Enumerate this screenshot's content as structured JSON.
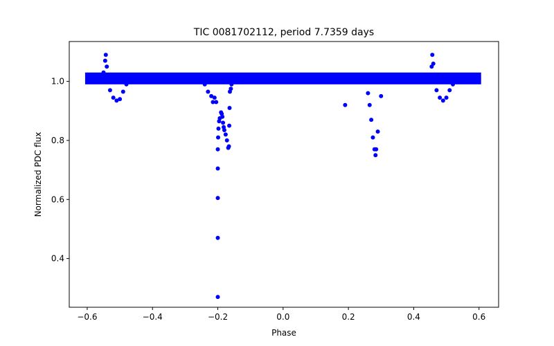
{
  "chart_data": {
    "type": "scatter",
    "title": "TIC 0081702112, period 7.7359 days",
    "xlabel": "Phase",
    "ylabel": "Normalized PDC flux",
    "xlim": [
      -0.655,
      0.66
    ],
    "ylim": [
      0.235,
      1.135
    ],
    "xticks": [
      -0.6,
      -0.4,
      -0.2,
      0.0,
      0.2,
      0.4,
      0.6
    ],
    "xtick_labels": [
      "−0.6",
      "−0.4",
      "−0.2",
      "0.0",
      "0.2",
      "0.4",
      "0.6"
    ],
    "yticks": [
      0.4,
      0.6,
      0.8,
      1.0
    ],
    "ytick_labels": [
      "0.4",
      "0.6",
      "0.8",
      "1.0"
    ],
    "marker_color": "#0000ff",
    "grid": false,
    "series": [
      {
        "name": "PDC flux",
        "x": [
          -0.6,
          -0.58,
          -0.56,
          -0.55,
          -0.545,
          -0.543,
          -0.54,
          -0.535,
          -0.53,
          -0.52,
          -0.51,
          -0.5,
          -0.49,
          -0.48,
          -0.46,
          -0.44,
          -0.42,
          -0.4,
          -0.38,
          -0.36,
          -0.34,
          -0.32,
          -0.3,
          -0.28,
          -0.26,
          -0.24,
          -0.23,
          -0.22,
          -0.215,
          -0.21,
          -0.205,
          -0.2,
          -0.2,
          -0.2,
          -0.2,
          -0.2,
          -0.199,
          -0.198,
          -0.196,
          -0.194,
          -0.19,
          -0.188,
          -0.186,
          -0.184,
          -0.182,
          -0.18,
          -0.176,
          -0.172,
          -0.168,
          -0.166,
          -0.165,
          -0.164,
          -0.163,
          -0.16,
          -0.158,
          -0.155,
          -0.15,
          -0.14,
          -0.13,
          -0.12,
          -0.1,
          -0.08,
          -0.06,
          -0.04,
          -0.02,
          0.0,
          0.02,
          0.04,
          0.06,
          0.08,
          0.1,
          0.12,
          0.14,
          0.16,
          0.18,
          0.19,
          0.2,
          0.22,
          0.24,
          0.25,
          0.26,
          0.265,
          0.27,
          0.275,
          0.28,
          0.283,
          0.285,
          0.29,
          0.3,
          0.31,
          0.32,
          0.34,
          0.36,
          0.38,
          0.4,
          0.42,
          0.44,
          0.45,
          0.455,
          0.457,
          0.46,
          0.465,
          0.47,
          0.48,
          0.49,
          0.5,
          0.51,
          0.52,
          0.54,
          0.56,
          0.58,
          0.6
        ],
        "y": [
          1.01,
          1.01,
          1.01,
          1.03,
          1.07,
          1.09,
          1.05,
          1.0,
          0.97,
          0.945,
          0.935,
          0.94,
          0.965,
          0.99,
          1.01,
          1.01,
          1.01,
          1.01,
          1.01,
          1.01,
          1.01,
          1.01,
          1.015,
          1.015,
          1.01,
          0.99,
          0.965,
          0.95,
          0.93,
          0.945,
          0.93,
          0.27,
          0.47,
          0.605,
          0.705,
          0.77,
          0.81,
          0.84,
          0.865,
          0.875,
          0.895,
          0.89,
          0.88,
          0.86,
          0.845,
          0.835,
          0.82,
          0.8,
          0.775,
          0.78,
          0.85,
          0.91,
          0.965,
          0.975,
          0.99,
          1.0,
          1.01,
          1.01,
          1.01,
          1.01,
          1.01,
          1.01,
          1.01,
          1.01,
          1.01,
          1.01,
          1.01,
          1.01,
          1.01,
          1.01,
          1.01,
          1.01,
          1.01,
          1.01,
          1.01,
          0.92,
          1.01,
          1.01,
          1.01,
          1.0,
          0.96,
          0.92,
          0.87,
          0.81,
          0.77,
          0.75,
          0.77,
          0.83,
          0.95,
          1.0,
          1.01,
          1.01,
          1.01,
          1.01,
          1.01,
          1.01,
          1.01,
          1.02,
          1.05,
          1.09,
          1.06,
          1.0,
          0.97,
          0.945,
          0.935,
          0.945,
          0.97,
          0.99,
          1.01,
          1.01,
          1.01,
          1.01
        ]
      }
    ],
    "annotations": []
  }
}
